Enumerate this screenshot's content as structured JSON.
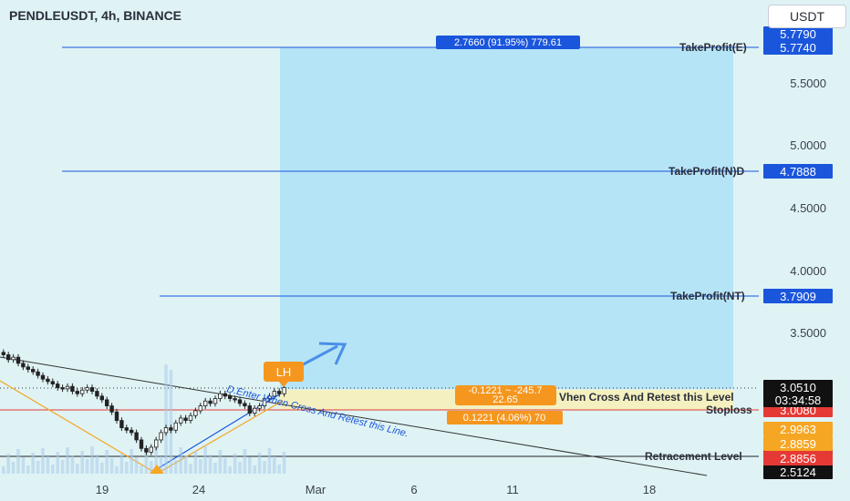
{
  "header": {
    "title": "PENDLEUSDT, 4h, BINANCE",
    "currency": "USDT"
  },
  "chart_data": {
    "type": "candlestick",
    "symbol": "PENDLEUSDT",
    "timeframe": "4h",
    "exchange": "BINANCE",
    "y_ticks": [
      "5.5000",
      "5.0000",
      "4.5000",
      "4.0000",
      "3.5000"
    ],
    "x_ticks": [
      "19",
      "24",
      "Mar",
      "6",
      "11",
      "18"
    ],
    "price_range": [
      2.38,
      5.9
    ],
    "closes": [
      3.32,
      3.28,
      3.3,
      3.25,
      3.22,
      3.2,
      3.18,
      3.15,
      3.12,
      3.1,
      3.08,
      3.05,
      3.04,
      3.06,
      3.02,
      3.0,
      3.03,
      3.05,
      3.02,
      2.98,
      2.95,
      2.9,
      2.85,
      2.78,
      2.72,
      2.7,
      2.68,
      2.62,
      2.55,
      2.52,
      2.56,
      2.62,
      2.68,
      2.72,
      2.7,
      2.76,
      2.8,
      2.78,
      2.82,
      2.86,
      2.9,
      2.94,
      2.92,
      2.96,
      3.0,
      2.98,
      2.96,
      2.95,
      2.92,
      2.9,
      2.84,
      2.88,
      2.9,
      2.96,
      2.98,
      3.02,
      3.0,
      3.05
    ],
    "levels": [
      {
        "name": "TakeProfit(E)",
        "value": "5.7740",
        "color": "#1a56db"
      },
      {
        "name": "TakeProfit(N)D",
        "value": "4.7888",
        "color": "#1a56db"
      },
      {
        "name": "TakeProfit(NT)",
        "value": "3.7909",
        "color": "#1a56db"
      },
      {
        "name": "Stoploss",
        "value": "3.0080",
        "color": "#e53935"
      },
      {
        "name": "Retracement Level",
        "value": "2.8856",
        "color": "#222222"
      }
    ],
    "price_tags": [
      {
        "value": "5.7790",
        "bg": "#1a56db"
      },
      {
        "value": "3.0510",
        "bg": "#111111"
      },
      {
        "value": "03:34:58",
        "bg": "#111111"
      },
      {
        "value": "2.9963",
        "bg": "#f5a623"
      },
      {
        "value": "2.8859",
        "bg": "#f5a623"
      },
      {
        "value": "2.5124",
        "bg": "#111111"
      }
    ],
    "annotations": {
      "target_box": "2.7660 (91.95%) 779.61",
      "entry_box": "-0.1221 ~ -245.7",
      "entry_box_sub": "22.65",
      "stop_box": "0.1221 (4.06%) 70",
      "entry_line_label": "Vhen Cross And Retest this Level",
      "trend_label": "D.Enter When Cross And Retest this Line.",
      "lh_label": "LH"
    },
    "colors": {
      "up": "#26a69a",
      "down": "#ef5350",
      "target_zone": "#aee0f7",
      "entry_zone": "#f6f0b9"
    }
  }
}
